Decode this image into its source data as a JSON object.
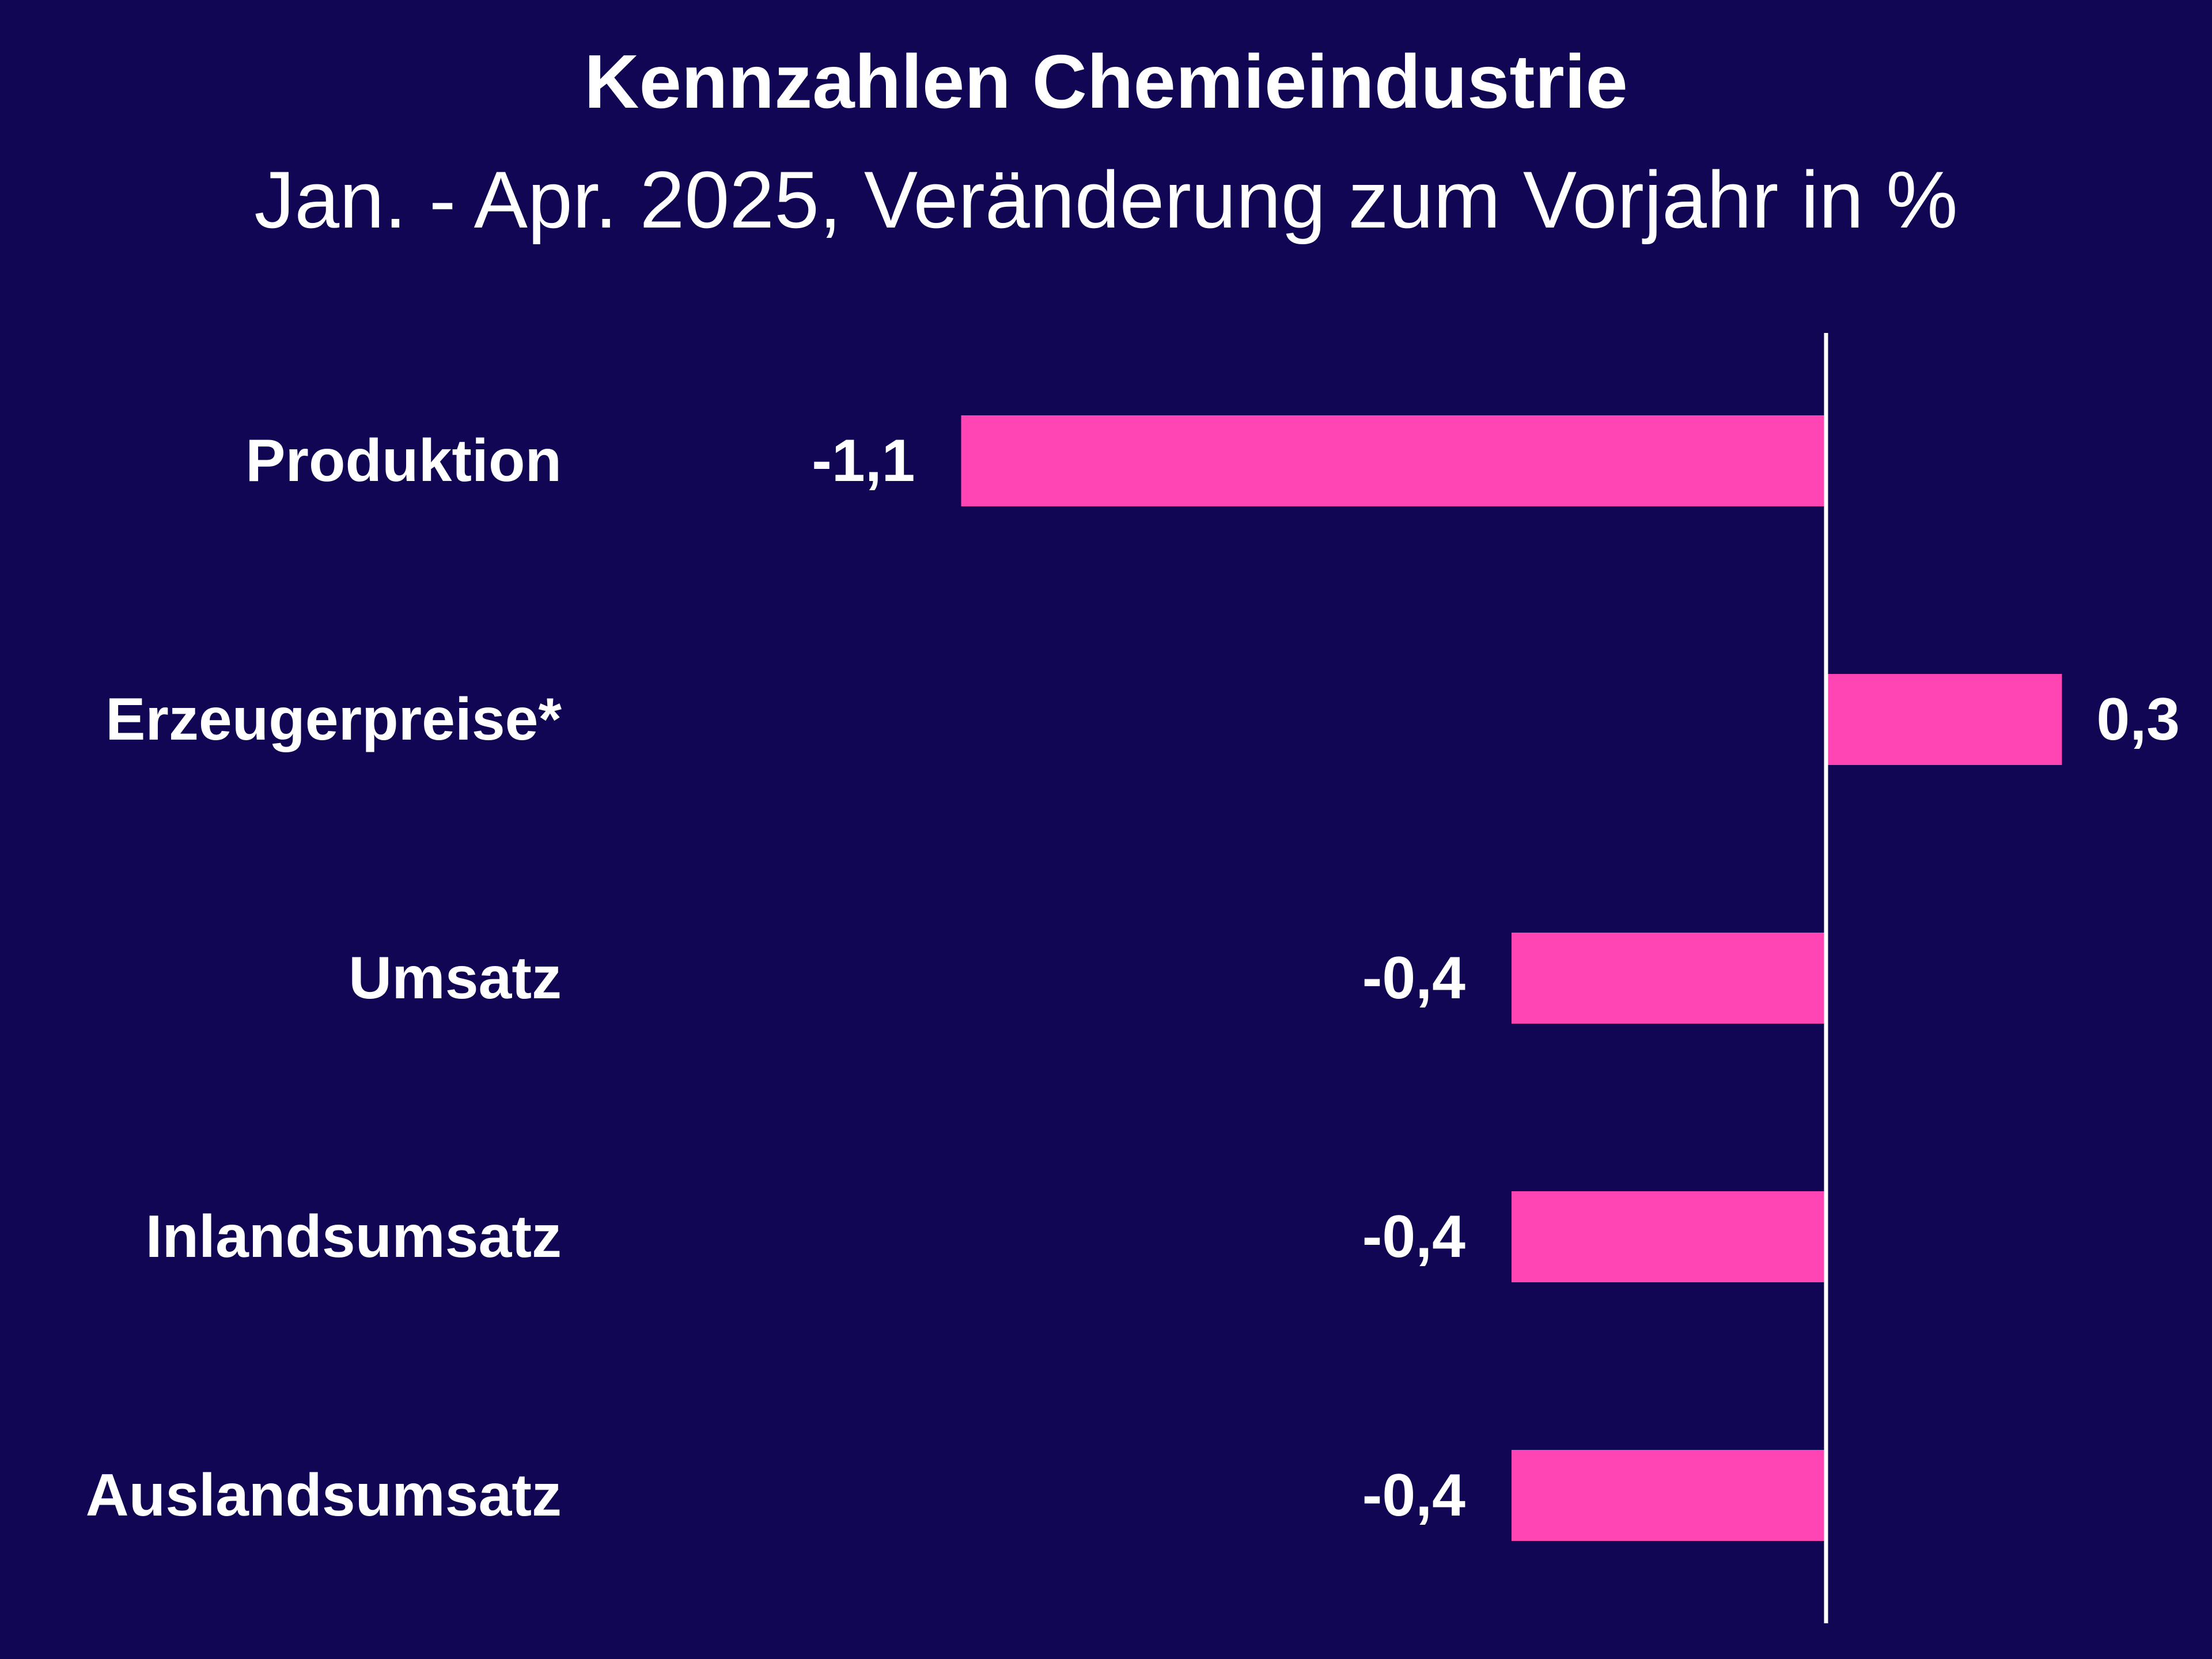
{
  "title": "Kennzahlen Chemieindustrie",
  "subtitle": "Jan. - Apr. 2025, Veränderung zum Vorjahr in %",
  "colors": {
    "background": "#100654",
    "bar": "#ff44b4",
    "axis": "#ffffff",
    "text": "#ffffff"
  },
  "chart_data": {
    "type": "bar",
    "orientation": "horizontal",
    "title": "Kennzahlen Chemieindustrie",
    "subtitle": "Jan. - Apr. 2025, Veränderung zum Vorjahr in %",
    "categories": [
      "Produktion",
      "Erzeugerpreise*",
      "Umsatz",
      "Inlandsumsatz",
      "Auslandsumsatz"
    ],
    "values": [
      -1.1,
      0.3,
      -0.4,
      -0.4,
      -0.4
    ],
    "value_labels": [
      "-1,1",
      "0,3",
      "-0,4",
      "-0,4",
      "-0,4"
    ],
    "xlim": [
      -2.2,
      0.45
    ],
    "xlabel": "",
    "ylabel": "",
    "grid": false,
    "legend": "none",
    "baseline": 0
  }
}
